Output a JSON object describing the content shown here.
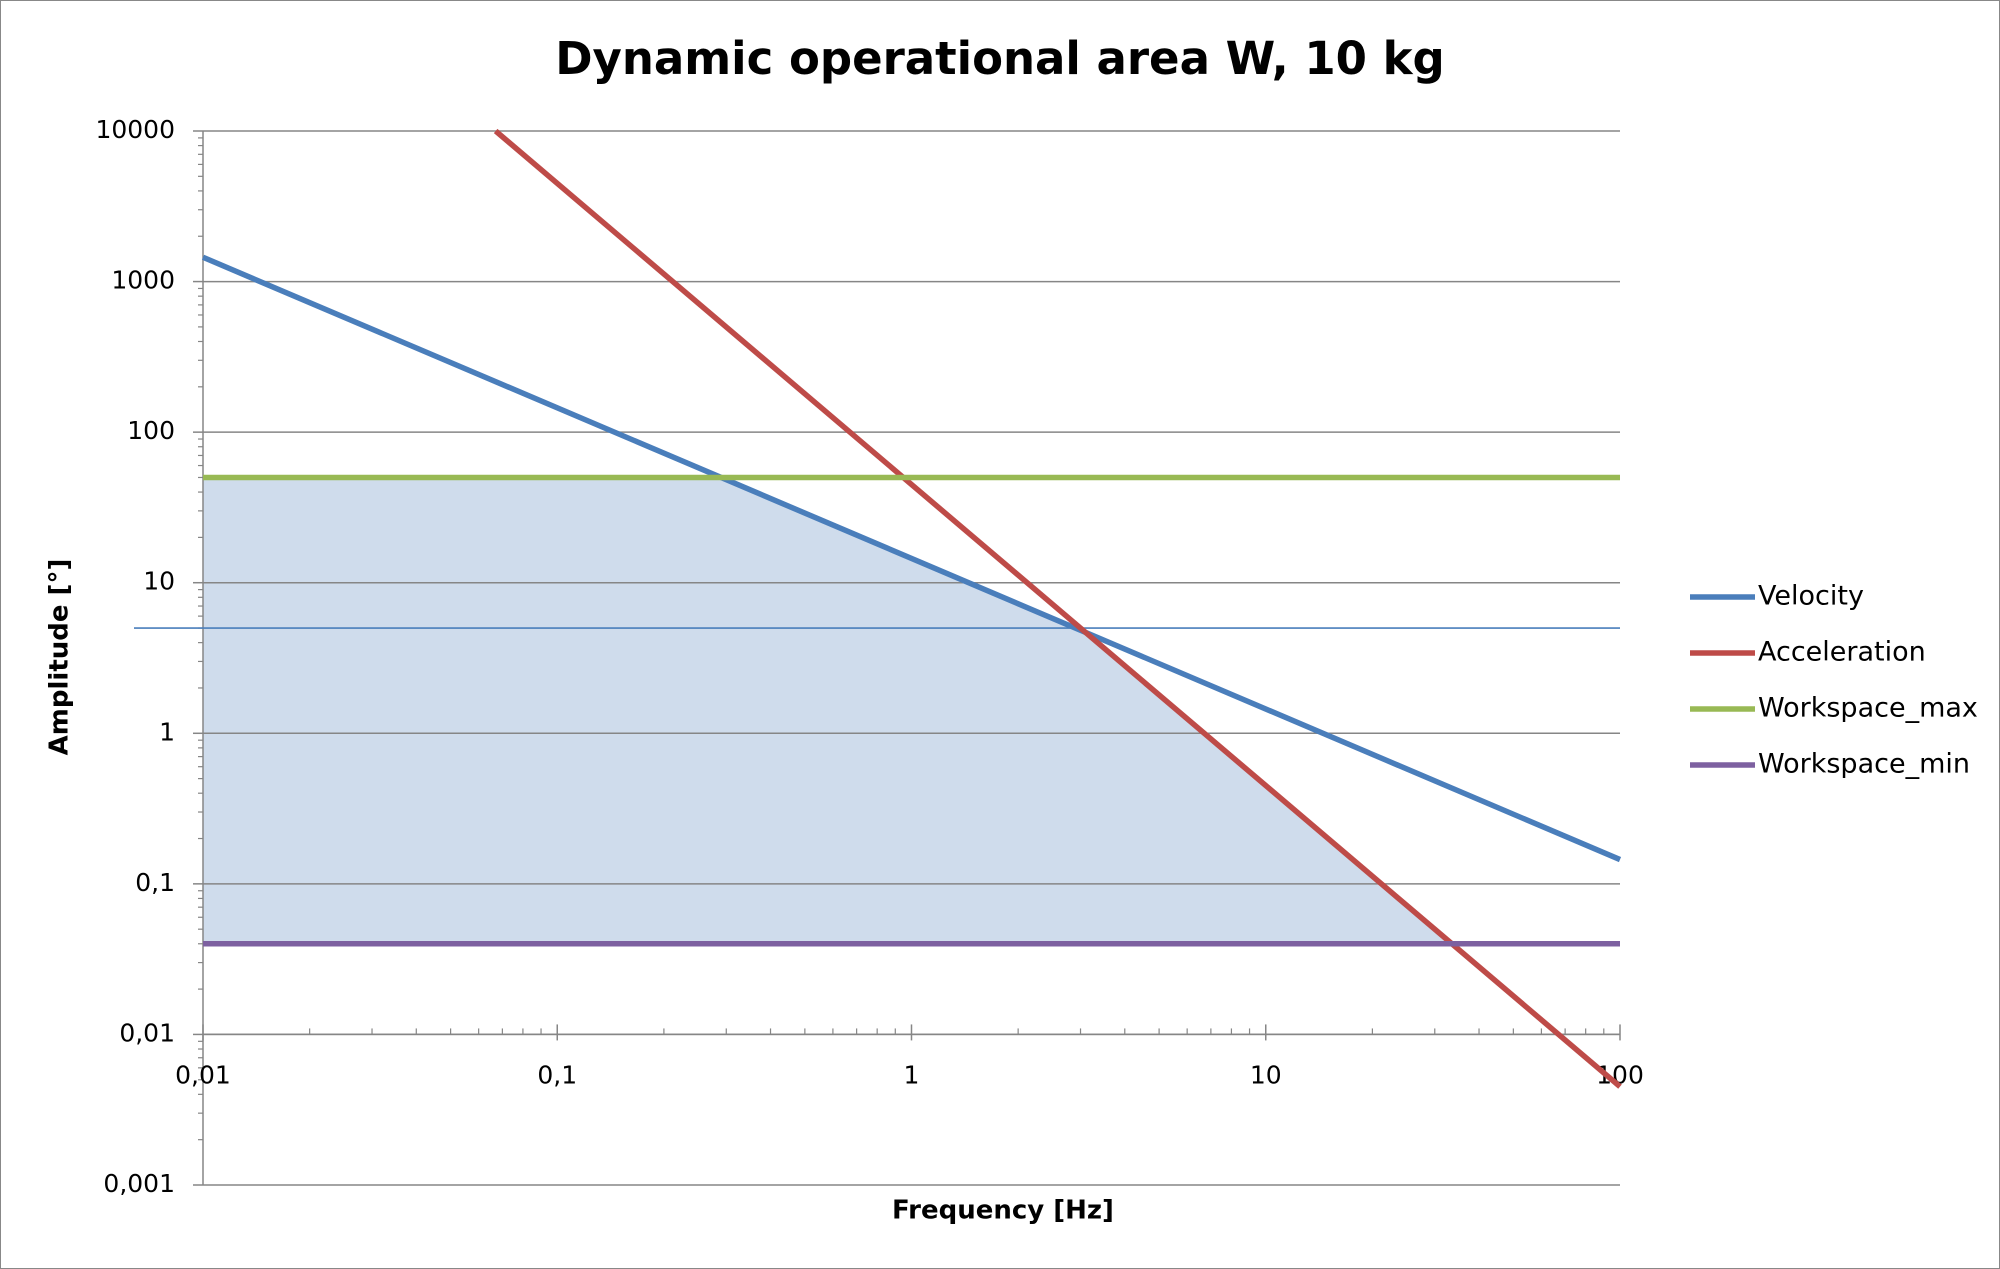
{
  "chart_data": {
    "type": "line",
    "title": "Dynamic operational area W, 10 kg",
    "x_label": "Frequency [Hz]",
    "y_label": "Amplitude [°]",
    "log_x": true,
    "log_y": true,
    "grid": true,
    "legend": "right",
    "xlim": [
      0.01,
      100
    ],
    "ylim": [
      0.001,
      10000
    ],
    "xticks": [
      {
        "value": 0.01,
        "label": "0,01"
      },
      {
        "value": 0.1,
        "label": "0,1"
      },
      1,
      10,
      100
    ],
    "yticks": [
      {
        "value": 0.001,
        "label": "0,001"
      },
      {
        "value": 0.01,
        "label": "0,01"
      },
      {
        "value": 0.1,
        "label": "0,1"
      },
      1,
      10,
      100,
      1000,
      10000
    ],
    "series": [
      {
        "name": "Velocity",
        "color": "#4a7ebb",
        "x": [
          0.01,
          100
        ],
        "values": [
          1450,
          0.145
        ]
      },
      {
        "name": "Acceleration",
        "color": "#be4b48",
        "x": [
          0.067,
          100
        ],
        "values": [
          10000,
          0.0045
        ]
      },
      {
        "name": "Workspace_max",
        "color": "#98b954",
        "x": [
          0.01,
          100
        ],
        "values": [
          50,
          50
        ]
      },
      {
        "name": "Workspace_min",
        "color": "#7d60a0",
        "x": [
          0.01,
          100
        ],
        "values": [
          0.04,
          0.04
        ]
      }
    ],
    "reference_line": {
      "value": 5,
      "color": "#4a7ebb"
    },
    "area_fill": "#cfdcec"
  }
}
